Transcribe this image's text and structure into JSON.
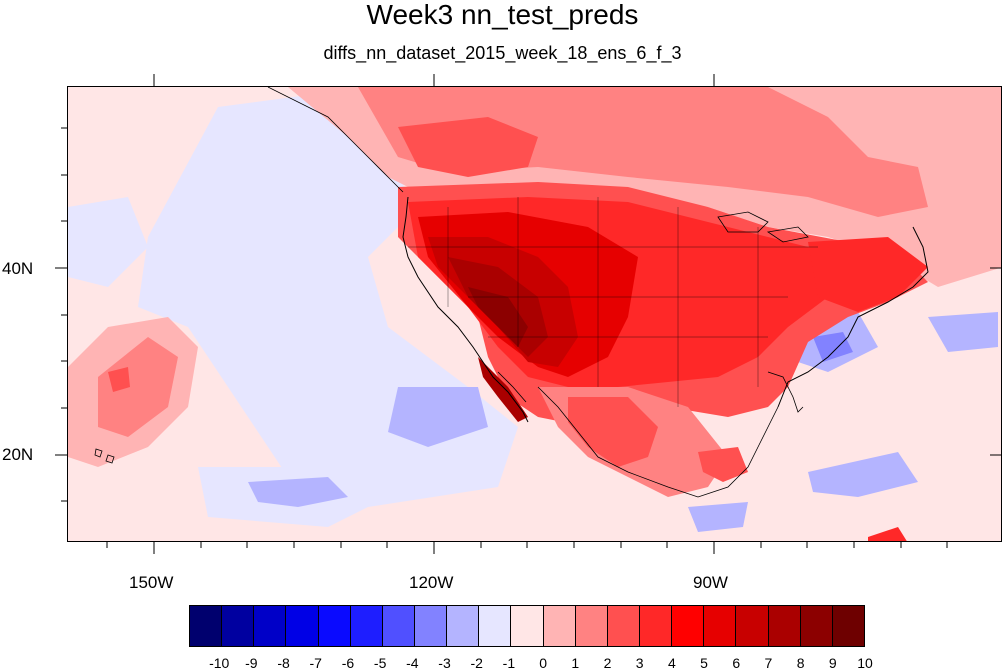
{
  "title": "Week3 nn_test_preds",
  "subtitle": "diffs_nn_dataset_2015_week_18_ens_6_f_3",
  "map": {
    "lat_labels": [
      "40N",
      "20N"
    ],
    "lon_labels": [
      "150W",
      "120W",
      "90W"
    ]
  },
  "colorbar": {
    "labels": [
      "-10",
      "-9",
      "-8",
      "-7",
      "-6",
      "-5",
      "-4",
      "-3",
      "-2",
      "-1",
      "0",
      "1",
      "2",
      "3",
      "4",
      "5",
      "6",
      "7",
      "8",
      "9",
      "10"
    ],
    "colors": [
      "#00006e",
      "#0000a0",
      "#0000c8",
      "#0000e6",
      "#0a0aff",
      "#1e1eff",
      "#5050ff",
      "#8282ff",
      "#b4b4ff",
      "#e6e6ff",
      "#ffe6e6",
      "#ffb4b4",
      "#ff8282",
      "#ff5050",
      "#ff2828",
      "#ff0000",
      "#e60000",
      "#c80000",
      "#aa0000",
      "#8c0000",
      "#6e0000"
    ]
  }
}
